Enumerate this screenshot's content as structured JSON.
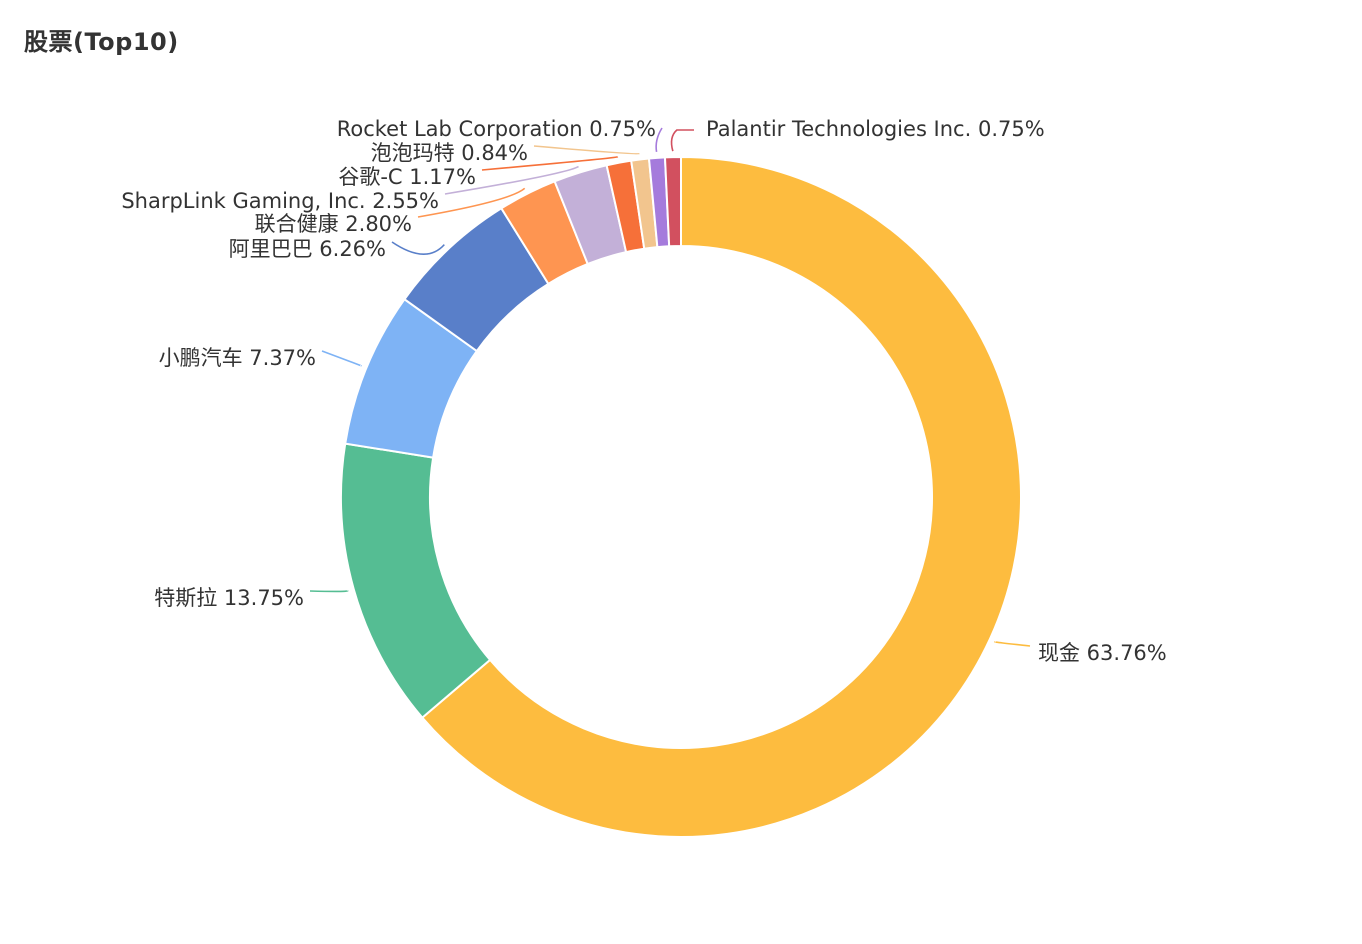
{
  "chart_data": {
    "type": "pie",
    "subtype": "donut",
    "title": "股票(Top10)",
    "slices": [
      {
        "label": "现金",
        "percent_text": "63.76%",
        "value": 63.76,
        "color": "#FDBC3F"
      },
      {
        "label": "特斯拉",
        "percent_text": "13.75%",
        "value": 13.75,
        "color": "#55BD93"
      },
      {
        "label": "小鹏汽车",
        "percent_text": "7.37%",
        "value": 7.37,
        "color": "#7EB3F5"
      },
      {
        "label": "阿里巴巴",
        "percent_text": "6.26%",
        "value": 6.26,
        "color": "#597FC9"
      },
      {
        "label": "联合健康",
        "percent_text": "2.80%",
        "value": 2.8,
        "color": "#FE9551"
      },
      {
        "label": "SharpLink Gaming, Inc.",
        "percent_text": "2.55%",
        "value": 2.55,
        "color": "#C3B0D8"
      },
      {
        "label": "谷歌-C",
        "percent_text": "1.17%",
        "value": 1.17,
        "color": "#F67039"
      },
      {
        "label": "泡泡玛特",
        "percent_text": "0.84%",
        "value": 0.84,
        "color": "#F2C58E"
      },
      {
        "label": "Rocket Lab Corporation",
        "percent_text": "0.75%",
        "value": 0.75,
        "color": "#A57BDC"
      },
      {
        "label": "Palantir Technologies Inc.",
        "percent_text": "0.75%",
        "value": 0.75,
        "color": "#D2505F"
      }
    ]
  }
}
